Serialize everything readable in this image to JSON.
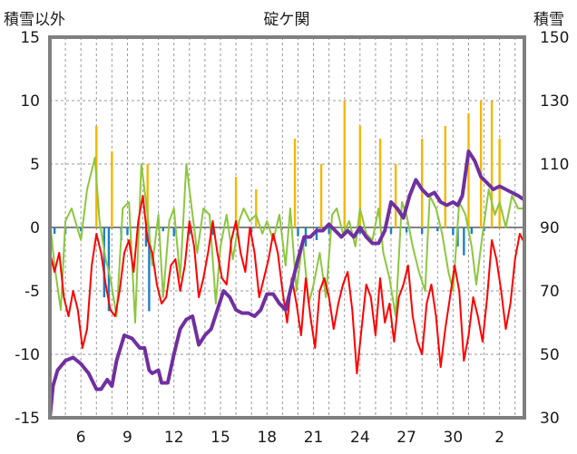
{
  "chart_data": {
    "type": "line",
    "title": "碇ケ関",
    "left_axis_label": "積雪以外",
    "right_axis_label": "積雪",
    "left_ylim": [
      -15,
      15
    ],
    "left_ticks": [
      "15",
      "10",
      "5",
      "0",
      "-5",
      "-10",
      "-15"
    ],
    "right_ylim": [
      30,
      150
    ],
    "right_ticks": [
      "150",
      "130",
      "110",
      "90",
      "70",
      "50",
      "30"
    ],
    "x_ticks": [
      "6",
      "9",
      "12",
      "15",
      "18",
      "21",
      "24",
      "27",
      "30",
      "2"
    ],
    "grid": true,
    "series": [
      {
        "color": "#f2b705",
        "axis": "left",
        "kind": "bar",
        "x": [
          7.0,
          8.0,
          10.3,
          16.0,
          17.3,
          19.8,
          21.5,
          23.0,
          24.0,
          25.3,
          26.3,
          28.0,
          29.5,
          31.0,
          31.8,
          32.5,
          33.0
        ],
        "values": [
          8,
          6,
          5,
          4,
          3,
          7,
          5,
          10,
          8,
          7,
          5,
          7,
          8,
          9,
          10,
          10,
          7
        ]
      },
      {
        "color": "#1f7fc4",
        "axis": "left",
        "kind": "bar",
        "x": [
          4.3,
          5.0,
          6.0,
          7.5,
          7.8,
          8.6,
          9.0,
          10.2,
          10.4,
          11.3,
          12.0,
          13.0,
          14.5,
          17.0,
          20.0,
          20.5,
          21.2,
          22.0,
          24.0,
          26.0,
          27.0,
          28.0,
          29.0,
          30.0,
          30.3,
          30.7,
          31.2,
          32.0
        ],
        "values": [
          -0.5,
          -0.5,
          -0.3,
          -5.5,
          -6.6,
          -1.0,
          -0.6,
          -1.5,
          -6.6,
          -0.3,
          -0.7,
          -0.5,
          -0.6,
          -0.4,
          -0.7,
          -1.5,
          -1.0,
          -0.5,
          -0.5,
          -0.5,
          -0.4,
          -0.5,
          -0.3,
          -0.6,
          -1.5,
          -2.2,
          -0.5,
          -0.3
        ]
      },
      {
        "color": "#8dc63f",
        "axis": "left",
        "kind": "line",
        "x": [
          4.0,
          4.3,
          4.7,
          5.0,
          5.4,
          6.0,
          6.4,
          6.9,
          7.2,
          7.6,
          7.9,
          8.3,
          8.7,
          9.1,
          9.5,
          9.9,
          10.3,
          10.6,
          11.0,
          11.3,
          11.7,
          12.0,
          12.4,
          12.8,
          13.2,
          13.5,
          13.9,
          14.3,
          14.7,
          15.0,
          15.4,
          15.8,
          16.2,
          16.5,
          16.9,
          17.3,
          17.7,
          18.0,
          18.4,
          18.8,
          19.2,
          19.5,
          19.9,
          20.3,
          20.7,
          21.0,
          21.4,
          21.8,
          22.2,
          22.5,
          22.9,
          23.3,
          23.7,
          24.0,
          24.4,
          24.8,
          25.2,
          25.5,
          25.9,
          26.3,
          26.7,
          27.0,
          27.4,
          27.8,
          28.2,
          28.5,
          28.9,
          29.3,
          29.7,
          30.0,
          30.4,
          30.8,
          31.2,
          31.5,
          31.9,
          32.3,
          32.7,
          33.0,
          33.4,
          33.8,
          34.2,
          34.5
        ],
        "values": [
          0.5,
          -3.0,
          -6.5,
          0.5,
          1.5,
          -1.0,
          3.0,
          5.5,
          0.5,
          -2.5,
          -4.0,
          -7.0,
          1.5,
          2.0,
          -7.5,
          5.0,
          1.0,
          -3.0,
          1.0,
          -5.5,
          0.5,
          1.5,
          -4.0,
          5.0,
          1.0,
          -2.0,
          1.5,
          1.0,
          -6.0,
          -1.5,
          1.0,
          -2.5,
          0.5,
          1.5,
          0.5,
          1.0,
          -0.5,
          0.5,
          -1.0,
          1.0,
          -3.0,
          1.5,
          -5.0,
          -1.0,
          -6.0,
          -4.5,
          -2.0,
          -5.5,
          1.0,
          1.5,
          -0.5,
          0.5,
          -1.5,
          1.5,
          -0.5,
          -1.0,
          1.5,
          -2.0,
          -4.0,
          -7.0,
          2.0,
          1.0,
          -1.5,
          -3.5,
          -5.0,
          2.5,
          1.5,
          -0.5,
          -3.5,
          -5.0,
          2.0,
          1.0,
          -1.5,
          -4.5,
          -0.5,
          3.0,
          1.0,
          2.0,
          0.0,
          2.5,
          1.5,
          1.5
        ]
      },
      {
        "color": "#ff0000",
        "axis": "left",
        "kind": "line",
        "x": [
          4.0,
          4.3,
          4.6,
          4.9,
          5.2,
          5.5,
          5.8,
          6.1,
          6.4,
          6.7,
          7.0,
          7.3,
          7.6,
          7.9,
          8.2,
          8.5,
          8.8,
          9.1,
          9.4,
          9.7,
          10.0,
          10.3,
          10.6,
          10.9,
          11.2,
          11.5,
          11.8,
          12.1,
          12.4,
          12.7,
          13.0,
          13.3,
          13.6,
          13.9,
          14.2,
          14.5,
          14.8,
          15.1,
          15.4,
          15.7,
          16.0,
          16.3,
          16.6,
          16.9,
          17.2,
          17.5,
          17.8,
          18.1,
          18.4,
          18.7,
          19.0,
          19.3,
          19.6,
          19.9,
          20.2,
          20.5,
          20.8,
          21.1,
          21.4,
          21.7,
          22.0,
          22.3,
          22.6,
          22.9,
          23.2,
          23.5,
          23.8,
          24.1,
          24.4,
          24.7,
          25.0,
          25.3,
          25.6,
          25.9,
          26.2,
          26.5,
          26.8,
          27.1,
          27.4,
          27.7,
          28.0,
          28.3,
          28.6,
          28.9,
          29.2,
          29.5,
          29.8,
          30.1,
          30.4,
          30.7,
          31.0,
          31.3,
          31.6,
          31.9,
          32.2,
          32.5,
          32.8,
          33.1,
          33.4,
          33.7,
          34.0,
          34.3,
          34.5
        ],
        "values": [
          -2.0,
          -3.5,
          -2.0,
          -5.5,
          -7.0,
          -5.0,
          -6.5,
          -9.5,
          -8.0,
          -3.0,
          -0.5,
          -2.0,
          -4.5,
          -6.5,
          -7.0,
          -5.0,
          -2.0,
          -1.0,
          -3.5,
          0.5,
          2.5,
          -1.0,
          -2.0,
          -4.5,
          -6.0,
          -5.5,
          -3.0,
          -2.5,
          -5.0,
          -3.0,
          0.5,
          -1.5,
          -5.5,
          -4.0,
          -2.0,
          0.5,
          -2.0,
          -4.0,
          -4.5,
          -1.0,
          0.5,
          -2.0,
          -3.5,
          0.0,
          -2.0,
          -5.5,
          -4.0,
          -2.5,
          -0.5,
          -2.0,
          -5.0,
          -7.5,
          -4.0,
          -6.0,
          -8.5,
          -4.0,
          -7.0,
          -9.5,
          -5.0,
          -4.0,
          -5.5,
          -8.0,
          -6.0,
          -4.5,
          -3.5,
          -6.5,
          -11.5,
          -8.0,
          -4.5,
          -5.5,
          -8.5,
          -4.0,
          -7.5,
          -6.0,
          -9.0,
          -5.5,
          -4.5,
          -3.0,
          -7.0,
          -9.0,
          -10.0,
          -6.0,
          -4.5,
          -7.0,
          -11.0,
          -8.0,
          -5.5,
          -3.0,
          -5.0,
          -10.5,
          -8.5,
          -5.5,
          -7.0,
          -9.0,
          -5.5,
          -1.0,
          -2.5,
          -5.0,
          -8.0,
          -6.0,
          -2.5,
          -0.5,
          -1.0
        ]
      },
      {
        "color": "#7030a0",
        "axis": "right",
        "kind": "line",
        "x": [
          4.0,
          4.2,
          4.5,
          5.0,
          5.5,
          6.0,
          6.5,
          7.0,
          7.3,
          7.7,
          8.0,
          8.3,
          8.8,
          9.3,
          9.8,
          10.1,
          10.4,
          10.6,
          11.0,
          11.2,
          11.6,
          12.0,
          12.4,
          12.8,
          13.2,
          13.6,
          14.0,
          14.4,
          14.8,
          15.2,
          15.6,
          16.0,
          16.4,
          16.8,
          17.2,
          17.6,
          18.0,
          18.4,
          18.8,
          19.2,
          19.6,
          20.0,
          20.4,
          20.8,
          21.2,
          21.6,
          22.0,
          22.4,
          22.8,
          23.2,
          23.6,
          24.0,
          24.4,
          24.8,
          25.2,
          25.6,
          26.0,
          26.4,
          26.8,
          27.2,
          27.6,
          28.0,
          28.4,
          28.8,
          29.2,
          29.6,
          30.0,
          30.3,
          30.6,
          31.0,
          31.4,
          31.8,
          32.2,
          32.6,
          33.0,
          33.4,
          33.8,
          34.2,
          34.5
        ],
        "values": [
          30,
          40,
          45,
          48,
          49,
          47,
          44,
          39,
          39,
          42,
          40,
          48,
          56,
          55,
          52,
          52,
          45,
          44,
          45,
          41,
          41,
          50,
          58,
          61,
          62,
          53,
          56,
          58,
          64,
          70,
          68,
          64,
          63,
          63,
          62,
          64,
          69,
          69,
          66,
          64,
          72,
          80,
          87,
          87,
          89,
          89,
          91,
          89,
          87,
          89,
          87,
          90,
          87,
          85,
          85,
          89,
          98,
          96,
          93,
          100,
          105,
          102,
          100,
          101,
          98,
          97,
          98,
          97,
          100,
          114,
          111,
          106,
          104,
          102,
          103,
          102,
          101,
          100,
          99
        ]
      }
    ]
  }
}
